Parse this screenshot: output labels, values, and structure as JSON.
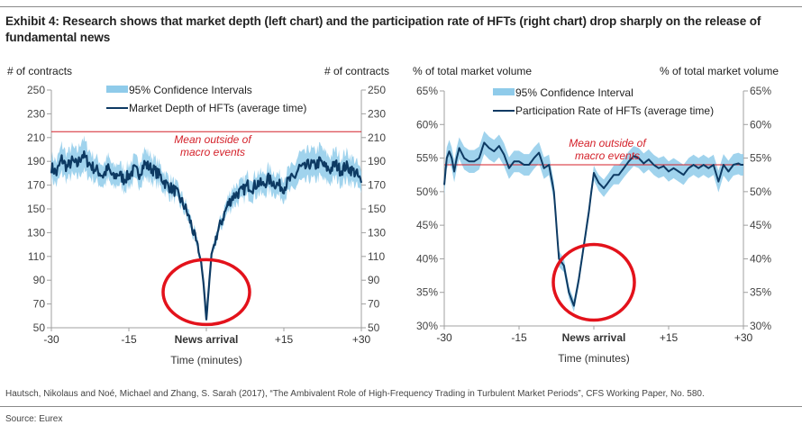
{
  "header": {
    "title": "Exhibit 4: Research shows that market depth (left chart) and the participation rate of HFTs (right chart) drop sharply on the release of fundamental news"
  },
  "footer": {
    "citation": "Hautsch, Nikolaus and Noé, Michael and Zhang, S. Sarah (2017), “The Ambivalent Role of High-Frequency Trading in Turbulent Market Periods”, CFS Working Paper, No. 580.",
    "source": "Source: Eurex"
  },
  "colors": {
    "line": "#0d3a63",
    "band": "#8fcbea",
    "mean_line": "#d4212a",
    "highlight_circle": "#e3121b",
    "axis": "#a0a0a0"
  },
  "chart_data": [
    {
      "type": "line",
      "title": "",
      "ylabel_left": "# of contracts",
      "ylabel_right": "# of contracts",
      "xlabel": "Time (minutes)",
      "xlim": [
        -30,
        30
      ],
      "ylim": [
        50,
        250
      ],
      "yticks": [
        50,
        70,
        90,
        110,
        130,
        150,
        170,
        190,
        210,
        230,
        250
      ],
      "ytick_labels": [
        "50",
        "70",
        "90",
        "110",
        "130",
        "150",
        "170",
        "190",
        "210",
        "230",
        "250"
      ],
      "xticks": [
        -30,
        -15,
        0,
        15,
        30
      ],
      "xtick_labels": [
        "-30",
        "-15",
        "News arrival",
        "+15",
        "+30"
      ],
      "grid": false,
      "legend": {
        "position": "top-center",
        "entries": [
          {
            "label": "95% Confidence Intervals",
            "kind": "band"
          },
          {
            "label": "Market Depth of HFTs (average time)",
            "kind": "line"
          }
        ]
      },
      "mean_line": {
        "value": 215,
        "label_line1": "Mean outside of",
        "label_line2": "macro events"
      },
      "highlight": {
        "x": 0,
        "y": 80,
        "label": "circle at news arrival"
      },
      "series": [
        {
          "name": "Market Depth of HFTs (average time)",
          "x": [
            -30,
            -29,
            -28,
            -27,
            -26,
            -25,
            -24,
            -23,
            -22,
            -21,
            -20,
            -19,
            -18,
            -17,
            -16,
            -15,
            -14,
            -13,
            -12,
            -11,
            -10,
            -9,
            -8,
            -7,
            -6,
            -5,
            -4,
            -3,
            -2,
            -1,
            -0.5,
            0,
            0.5,
            1,
            2,
            3,
            4,
            5,
            6,
            7,
            8,
            9,
            10,
            11,
            12,
            13,
            14,
            15,
            16,
            17,
            18,
            19,
            20,
            21,
            22,
            23,
            24,
            25,
            26,
            27,
            28,
            29,
            30
          ],
          "values": [
            185,
            180,
            192,
            185,
            190,
            187,
            196,
            190,
            185,
            182,
            178,
            184,
            176,
            180,
            175,
            178,
            183,
            180,
            188,
            185,
            182,
            178,
            172,
            168,
            165,
            158,
            150,
            138,
            122,
            105,
            85,
            57,
            85,
            112,
            128,
            140,
            152,
            160,
            163,
            165,
            170,
            168,
            172,
            170,
            175,
            172,
            170,
            168,
            174,
            176,
            185,
            184,
            188,
            186,
            190,
            185,
            183,
            188,
            182,
            186,
            183,
            180,
            172
          ],
          "ci_halfwidth": [
            10,
            10,
            12,
            11,
            12,
            11,
            14,
            12,
            10,
            10,
            9,
            10,
            9,
            9,
            9,
            9,
            10,
            10,
            12,
            11,
            10,
            9,
            8,
            8,
            7,
            6,
            5,
            5,
            4,
            3,
            2,
            2,
            2,
            3,
            4,
            5,
            6,
            8,
            8,
            8,
            9,
            9,
            9,
            9,
            10,
            9,
            9,
            9,
            10,
            10,
            12,
            12,
            13,
            12,
            13,
            12,
            11,
            12,
            11,
            12,
            11,
            10,
            9
          ]
        }
      ]
    },
    {
      "type": "line",
      "title": "",
      "ylabel_left": "% of total market volume",
      "ylabel_right": "% of total market volume",
      "xlabel": "Time (minutes)",
      "xlim": [
        -30,
        30
      ],
      "ylim": [
        30,
        65
      ],
      "yticks": [
        30,
        35,
        40,
        45,
        50,
        55,
        60,
        65
      ],
      "ytick_labels": [
        "30%",
        "35%",
        "40%",
        "45%",
        "50%",
        "55%",
        "60%",
        "65%"
      ],
      "xticks": [
        -30,
        -15,
        0,
        15,
        30
      ],
      "xtick_labels": [
        "-30",
        "-15",
        "News arrival",
        "+15",
        "+30"
      ],
      "grid": false,
      "legend": {
        "position": "top-center",
        "entries": [
          {
            "label": "95% Confidence Interval",
            "kind": "band"
          },
          {
            "label": "Participation Rate of HFTs (average time)",
            "kind": "line"
          }
        ]
      },
      "mean_line": {
        "value": 54,
        "label_line1": "Mean outside of",
        "label_line2": "macro events"
      },
      "highlight": {
        "x": 0,
        "y": 36.5,
        "label": "circle at news arrival"
      },
      "series": [
        {
          "name": "Participation Rate of HFTs (average time)",
          "x": [
            -30,
            -29.5,
            -29,
            -28.5,
            -28,
            -27.5,
            -27,
            -26,
            -25,
            -24,
            -23,
            -22,
            -21,
            -20,
            -19,
            -18,
            -17,
            -16,
            -15,
            -14,
            -13,
            -12,
            -11,
            -10,
            -9,
            -8,
            -7,
            -6,
            -5,
            -4,
            -3,
            -2,
            -1,
            -0.5,
            0,
            0.5,
            1,
            2,
            3,
            4,
            5,
            6,
            7,
            8,
            9,
            10,
            11,
            12,
            13,
            14,
            15,
            16,
            17,
            18,
            19,
            20,
            21,
            22,
            23,
            24,
            25,
            26,
            27,
            28,
            29,
            29.5,
            30
          ],
          "values": [
            51,
            55,
            56,
            55,
            53,
            55,
            56.5,
            55,
            54.5,
            54.5,
            55,
            57.3,
            56.5,
            56,
            56.8,
            55.5,
            53.5,
            54.5,
            54.5,
            54,
            54,
            55,
            55.8,
            53.5,
            54,
            50,
            40,
            39,
            35,
            33,
            37,
            42,
            47,
            50,
            52.8,
            52,
            51.3,
            50.5,
            51.5,
            52.5,
            52.5,
            53.5,
            54.5,
            55.3,
            55,
            54.2,
            54.8,
            54,
            53.5,
            53.8,
            53,
            53.5,
            53,
            52.5,
            53.5,
            54,
            53.5,
            54,
            53.5,
            54,
            51.5,
            54,
            53,
            54,
            54.2,
            54,
            54
          ],
          "ci_halfwidth": [
            1.5,
            1.6,
            1.7,
            1.6,
            1.6,
            1.6,
            1.6,
            1.7,
            1.7,
            1.7,
            1.7,
            1.7,
            1.7,
            1.7,
            1.7,
            1.7,
            1.6,
            1.6,
            1.6,
            1.6,
            1.6,
            1.6,
            1.6,
            1.6,
            1.5,
            1.4,
            1.2,
            1.0,
            0.9,
            0.9,
            0.9,
            0.9,
            1.0,
            1.0,
            1.1,
            1.1,
            1.2,
            1.3,
            1.3,
            1.4,
            1.4,
            1.4,
            1.5,
            1.5,
            1.5,
            1.5,
            1.5,
            1.5,
            1.5,
            1.5,
            1.5,
            1.5,
            1.5,
            1.5,
            1.5,
            1.5,
            1.5,
            1.5,
            1.5,
            1.5,
            1.6,
            1.6,
            1.6,
            1.6,
            1.6,
            1.6,
            1.6
          ]
        }
      ]
    }
  ]
}
